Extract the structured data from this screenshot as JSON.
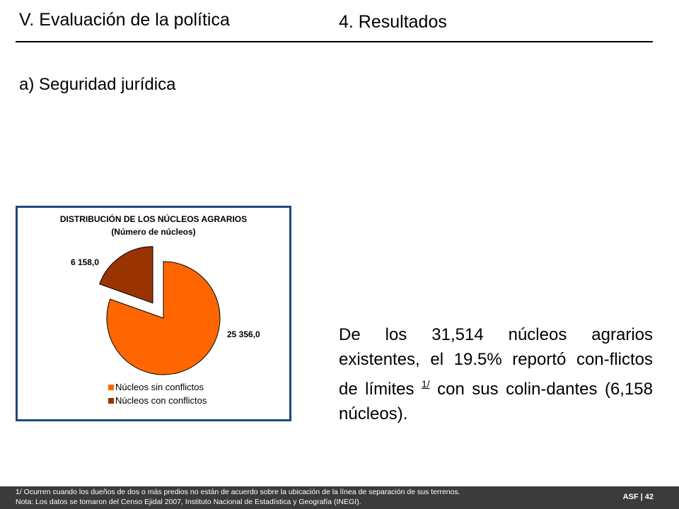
{
  "header": {
    "section_title": "V. Evaluación de la política",
    "subsection_title": "4. Resultados"
  },
  "subtitle": "a) Seguridad jurídica",
  "chart_data": {
    "type": "pie",
    "title": "DISTRIBUCIÓN DE LOS NÚCLEOS AGRARIOS",
    "subtitle": "(Número de núcleos)",
    "categories": [
      "Núcleos sin conflictos",
      "Núcleos con conflictos"
    ],
    "values": [
      25356.0,
      6158.0
    ],
    "data_labels": [
      "25 356,0",
      "6 158,0"
    ],
    "colors": [
      "#ff6600",
      "#993300"
    ],
    "exploded": [
      false,
      true
    ],
    "legend_position": "bottom-left"
  },
  "paragraph": {
    "before_sup": "De los 31,514 núcleos agrarios existentes, el 19.5% reportó con-flictos de límites ",
    "sup": "1/",
    "after_sup": " con sus colin-dantes (6,158 núcleos)."
  },
  "footer": {
    "note_1": "1/ Ocurren cuando los dueños de dos o más predios no están de acuerdo sobre la ubicación de la línea  de separación de sus terrenos.",
    "note_2": "Nota: Los datos se tomaron del Censo Ejidal 2007, Instituto Nacional  de Estadística y Geografía (INEGI).",
    "page_label": "ASF | 42"
  }
}
